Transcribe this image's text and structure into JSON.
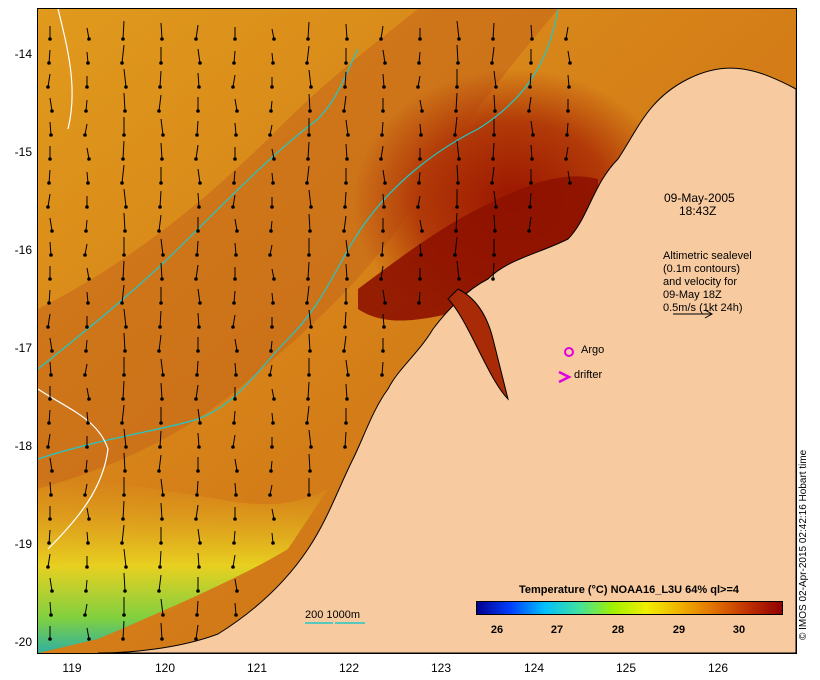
{
  "map": {
    "type": "sea surface temperature map",
    "region": "NW Australia (Kimberley coast)",
    "lat_range": [
      -20.05,
      -13.6
    ],
    "lon_range": [
      118.6,
      126.7
    ],
    "y_ticks": [
      "-14",
      "-15",
      "-16",
      "-17",
      "-18",
      "-19",
      "-20"
    ],
    "x_ticks": [
      "119",
      "120",
      "121",
      "122",
      "123",
      "124",
      "125",
      "126"
    ],
    "land_color": "#f7caa0",
    "contour_colors": {
      "depth_200m": "#20c8c8",
      "depth_1000m": "#ffffff"
    }
  },
  "annotations": {
    "date": "09-May-2005",
    "time": "18:43Z",
    "altimetry_lines": [
      "Altimetric sealevel",
      "(0.1m contours)",
      "and velocity for",
      "09-May 18Z",
      "0.5m/s (1kt 24h)"
    ],
    "argo_label": "Argo",
    "drifter_label": "drifter",
    "argo_color": "#e000e0",
    "drifter_color": "#e000e0",
    "depth_legend": "200  1000m"
  },
  "colorbar": {
    "title": "Temperature (°C) NOAA16_L3U 64% ql>=4",
    "ticks": [
      "26",
      "27",
      "28",
      "29",
      "30"
    ],
    "range": [
      25.4,
      30.7
    ],
    "colors": [
      "#000090",
      "#0040ff",
      "#00c0ff",
      "#40e0a0",
      "#a0f000",
      "#f0f000",
      "#f0b000",
      "#e07000",
      "#c03000",
      "#900000"
    ]
  },
  "credit": "© IMOS 02-Apr-2015 02:42:16 Hobart time"
}
